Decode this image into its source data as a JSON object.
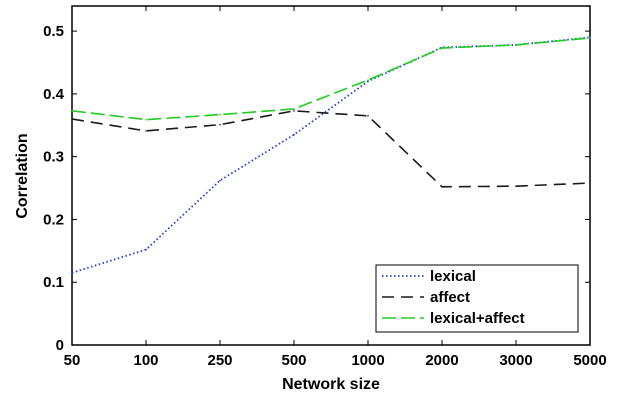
{
  "chart_data": {
    "type": "line",
    "xlabel": "Network size",
    "ylabel": "Correlation",
    "categories": [
      "50",
      "100",
      "250",
      "500",
      "1000",
      "2000",
      "3000",
      "5000"
    ],
    "ylim": [
      0,
      0.54
    ],
    "yticks": [
      "0",
      "0.1",
      "0.2",
      "0.3",
      "0.4",
      "0.5"
    ],
    "grid": false,
    "legend_position": "bottom-right",
    "series": [
      {
        "name": "lexical",
        "color": "#1f3fcf",
        "style": "dotted",
        "values": [
          0.115,
          0.152,
          0.262,
          0.335,
          0.42,
          0.474,
          0.478,
          0.49
        ]
      },
      {
        "name": "affect",
        "color": "#1a1a1a",
        "style": "dashed",
        "values": [
          0.36,
          0.341,
          0.351,
          0.373,
          0.365,
          0.252,
          0.253,
          0.258
        ]
      },
      {
        "name": "lexical+affect",
        "color": "#22cc22",
        "style": "dashed",
        "values": [
          0.373,
          0.359,
          0.367,
          0.376,
          0.422,
          0.473,
          0.478,
          0.489
        ]
      }
    ]
  }
}
